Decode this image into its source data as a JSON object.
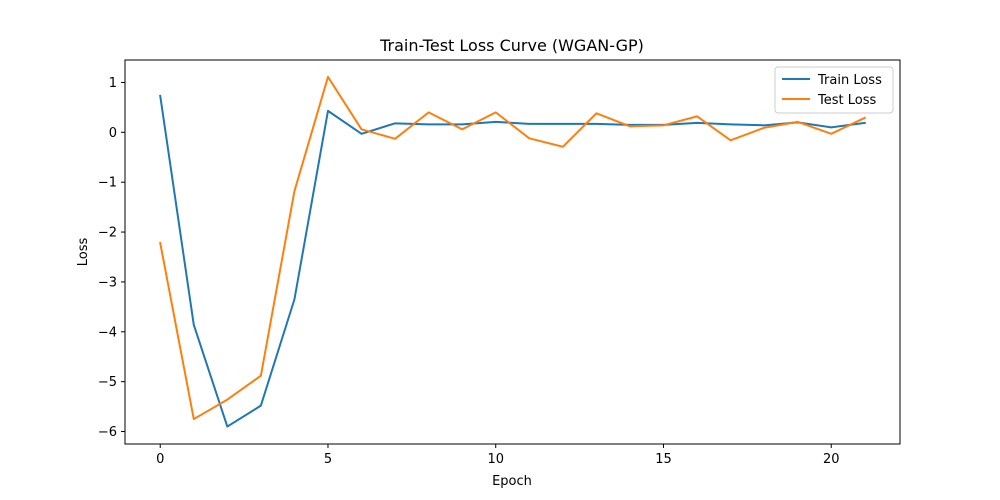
{
  "chart_data": {
    "type": "line",
    "title": "Train-Test Loss Curve (WGAN-GP)",
    "xlabel": "Epoch",
    "ylabel": "Loss",
    "xlim": [
      -1.05,
      22.05
    ],
    "ylim": [
      -6.25,
      1.45
    ],
    "xticks": [
      0,
      5,
      10,
      15,
      20
    ],
    "yticks": [
      1,
      0,
      -1,
      -2,
      -3,
      -4,
      -5,
      -6
    ],
    "ytick_labels": [
      "1",
      "0",
      "−1",
      "−2",
      "−3",
      "−4",
      "−5",
      "−6"
    ],
    "grid": false,
    "legend_position": "top-right",
    "x": [
      0,
      1,
      2,
      3,
      4,
      5,
      6,
      7,
      8,
      9,
      10,
      11,
      12,
      13,
      14,
      15,
      16,
      17,
      18,
      19,
      20,
      21
    ],
    "series": [
      {
        "name": "Train Loss",
        "color": "#1f77b4",
        "values": [
          0.73,
          -3.86,
          -5.9,
          -5.48,
          -3.35,
          0.43,
          -0.03,
          0.18,
          0.16,
          0.16,
          0.21,
          0.17,
          0.17,
          0.17,
          0.15,
          0.15,
          0.19,
          0.16,
          0.14,
          0.2,
          0.1,
          0.19
        ]
      },
      {
        "name": "Test Loss",
        "color": "#ff7f0e",
        "values": [
          -2.22,
          -5.75,
          -5.36,
          -4.88,
          -1.18,
          1.11,
          0.06,
          -0.13,
          0.4,
          0.06,
          0.4,
          -0.12,
          -0.29,
          0.38,
          0.12,
          0.14,
          0.32,
          -0.16,
          0.09,
          0.21,
          -0.03,
          0.29
        ]
      }
    ]
  }
}
